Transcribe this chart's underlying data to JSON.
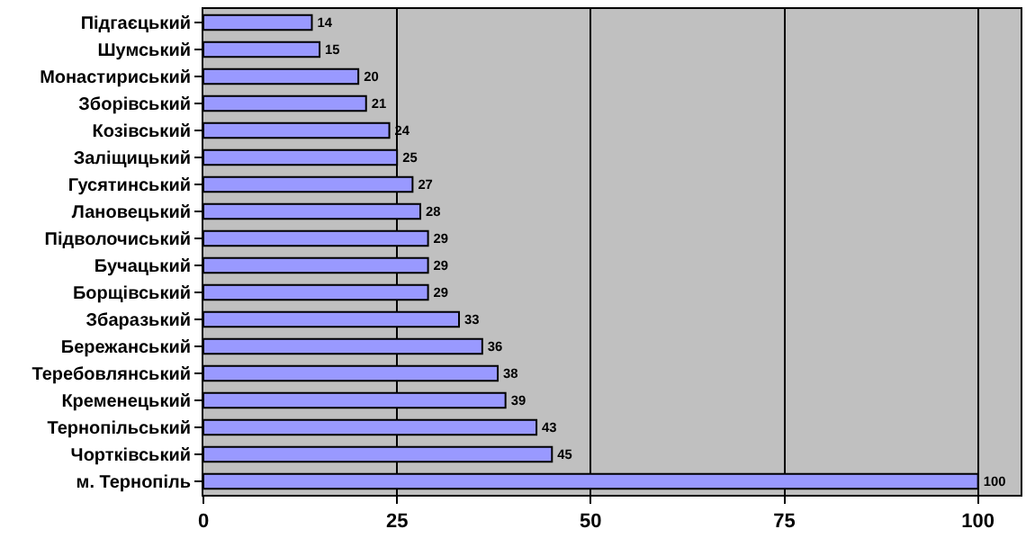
{
  "chart_data": {
    "type": "bar",
    "orientation": "horizontal",
    "categories": [
      "Підгаєцький",
      "Шумський",
      "Монастириський",
      "Зборівський",
      "Козівський",
      "Заліщицький",
      "Гусятинський",
      "Лановецький",
      "Підволочиський",
      "Бучацький",
      "Борщівський",
      "Збаразький",
      "Бережанський",
      "Теребовлянський",
      "Кременецький",
      "Тернопільський",
      "Чортківський",
      "м. Тернопіль"
    ],
    "values": [
      14,
      15,
      20,
      21,
      24,
      25,
      27,
      28,
      29,
      29,
      29,
      33,
      36,
      38,
      39,
      43,
      45,
      100
    ],
    "color": "#9999ff",
    "xlim": [
      0,
      105.5
    ],
    "xticks": [
      0,
      25,
      50,
      75,
      100
    ],
    "grid": "x",
    "data_labels": true
  }
}
